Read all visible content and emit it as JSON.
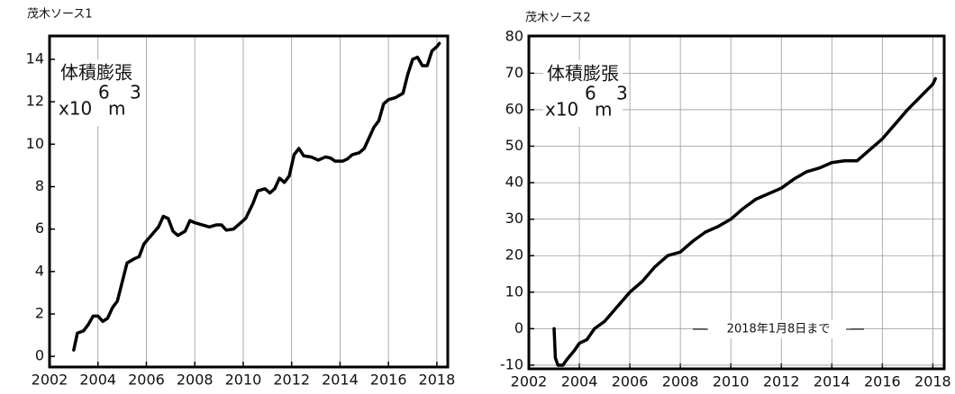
{
  "chart_data": [
    {
      "type": "line",
      "title": "茂木ソース1",
      "annotation": "体積膨張",
      "unit_parts": [
        "x10",
        "6",
        "m",
        "3"
      ],
      "xlim": [
        2002,
        2018.45
      ],
      "ylim": [
        -0.5,
        15.1
      ],
      "xticks": [
        2002,
        2004,
        2006,
        2008,
        2010,
        2012,
        2014,
        2016,
        2018
      ],
      "yticks": [
        0,
        2,
        4,
        6,
        8,
        10,
        12,
        14
      ],
      "grid": "x",
      "series": [
        {
          "color": "#000000",
          "x": [
            2003.0,
            2003.15,
            2003.4,
            2003.6,
            2003.8,
            2004.0,
            2004.2,
            2004.4,
            2004.6,
            2004.8,
            2005.0,
            2005.2,
            2005.5,
            2005.7,
            2005.9,
            2006.2,
            2006.5,
            2006.7,
            2006.9,
            2007.1,
            2007.3,
            2007.6,
            2007.8,
            2008.0,
            2008.3,
            2008.6,
            2008.9,
            2009.1,
            2009.3,
            2009.6,
            2009.9,
            2010.1,
            2010.4,
            2010.6,
            2010.9,
            2011.1,
            2011.3,
            2011.5,
            2011.7,
            2011.9,
            2012.1,
            2012.3,
            2012.5,
            2012.8,
            2013.1,
            2013.4,
            2013.6,
            2013.8,
            2014.1,
            2014.3,
            2014.5,
            2014.8,
            2015.0,
            2015.2,
            2015.4,
            2015.6,
            2015.8,
            2016.0,
            2016.3,
            2016.6,
            2016.8,
            2017.0,
            2017.2,
            2017.4,
            2017.6,
            2017.8,
            2018.0,
            2018.1
          ],
          "values": [
            0.3,
            1.1,
            1.2,
            1.5,
            1.9,
            1.9,
            1.65,
            1.8,
            2.3,
            2.6,
            3.5,
            4.4,
            4.6,
            4.7,
            5.3,
            5.7,
            6.1,
            6.6,
            6.5,
            5.9,
            5.7,
            5.9,
            6.4,
            6.3,
            6.2,
            6.1,
            6.2,
            6.2,
            5.95,
            6.0,
            6.3,
            6.5,
            7.2,
            7.8,
            7.9,
            7.7,
            7.9,
            8.4,
            8.2,
            8.5,
            9.5,
            9.8,
            9.45,
            9.4,
            9.25,
            9.4,
            9.35,
            9.2,
            9.2,
            9.3,
            9.5,
            9.6,
            9.8,
            10.3,
            10.8,
            11.1,
            11.9,
            12.1,
            12.2,
            12.4,
            13.3,
            14.0,
            14.1,
            13.7,
            13.7,
            14.4,
            14.6,
            14.75
          ]
        }
      ]
    },
    {
      "type": "line",
      "title": "茂木ソース2",
      "annotation": "体積膨張",
      "unit_parts": [
        "x10",
        "6",
        "m",
        "3"
      ],
      "note": "2018年1月8日まで",
      "xlim": [
        2002,
        2018.45
      ],
      "ylim": [
        -11,
        80.2
      ],
      "xticks": [
        2002,
        2004,
        2006,
        2008,
        2010,
        2012,
        2014,
        2016,
        2018
      ],
      "yticks": [
        -10,
        0,
        10,
        20,
        30,
        40,
        50,
        60,
        70,
        80
      ],
      "grid": "both",
      "series": [
        {
          "color": "#000000",
          "x": [
            2003.0,
            2003.05,
            2003.15,
            2003.35,
            2003.5,
            2003.8,
            2004.0,
            2004.3,
            2004.6,
            2005.0,
            2005.5,
            2006.0,
            2006.5,
            2007.0,
            2007.5,
            2008.0,
            2008.5,
            2009.0,
            2009.5,
            2010.0,
            2010.5,
            2011.0,
            2011.5,
            2012.0,
            2012.5,
            2013.0,
            2013.5,
            2014.0,
            2014.5,
            2015.0,
            2015.5,
            2016.0,
            2016.5,
            2017.0,
            2017.5,
            2018.0,
            2018.1
          ],
          "values": [
            0,
            -8,
            -10,
            -10,
            -8.5,
            -6,
            -4,
            -3,
            0,
            2,
            6,
            10,
            13,
            17,
            20,
            21,
            24,
            26.5,
            28,
            30,
            33,
            35.5,
            37,
            38.5,
            41,
            43,
            44,
            45.5,
            46,
            46,
            49,
            52,
            56,
            60,
            63.5,
            67,
            68.5
          ]
        }
      ]
    }
  ]
}
